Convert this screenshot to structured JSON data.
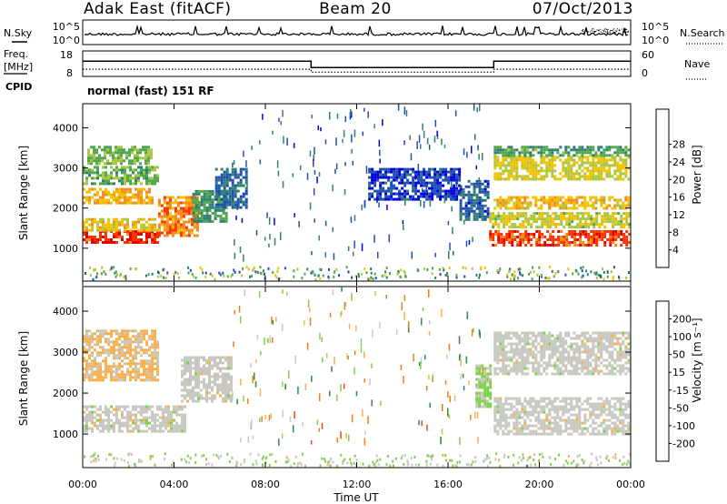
{
  "header": {
    "site": "Adak East (fitACF)",
    "beam": "Beam 20",
    "date": "07/Oct/2013"
  },
  "nsky_panel": {
    "left_label": "N.Sky",
    "left_ticks": [
      "10^5",
      "10^0"
    ],
    "right_label": "N.Search",
    "right_ticks": [
      "10^5",
      "10^0"
    ]
  },
  "freq_panel": {
    "left_label_1": "Freq.",
    "left_label_2": "[MHz]",
    "left_ticks": [
      "18",
      "8"
    ],
    "right_label": "Nave",
    "right_ticks": [
      "60",
      "0"
    ],
    "cpid_label": "CPID",
    "cpid_text": "normal (fast) 151 RF"
  },
  "colors": {
    "power_scale": [
      "#0000dd",
      "#1f4fb0",
      "#2f7f72",
      "#4ea64e",
      "#a9c640",
      "#f2c200",
      "#f58a1f",
      "#ff3300",
      "#e60000"
    ],
    "velocity_scale": [
      "#1428a8",
      "#2f6fa8",
      "#2e8c3a",
      "#7fd14a",
      "#c8c8c0",
      "#f6b050",
      "#f08010",
      "#e74a10",
      "#e00000"
    ]
  },
  "chart_data": [
    {
      "type": "heatmap",
      "title": "Power",
      "xlabel": "",
      "ylabel": "Slant Range [km]",
      "x_ticks": [
        "00:00",
        "04:00",
        "08:00",
        "12:00",
        "16:00",
        "20:00",
        "00:00"
      ],
      "y_ticks": [
        "1000",
        "2000",
        "3000",
        "4000"
      ],
      "xlim": [
        0,
        24
      ],
      "ylim": [
        180,
        4600
      ],
      "colorbar_label": "Power [dB]",
      "colorbar_ticks": [
        "4",
        "8",
        "12",
        "16",
        "20",
        "24",
        "28"
      ],
      "colorbar_range": [
        0,
        30
      ],
      "features": [
        {
          "x": [
            0.0,
            3.3
          ],
          "y": [
            1150,
            1450
          ],
          "value": 26
        },
        {
          "x": [
            0.0,
            3.3
          ],
          "y": [
            1450,
            1750
          ],
          "value": 18
        },
        {
          "x": [
            0.0,
            3.0
          ],
          "y": [
            2150,
            2500
          ],
          "value": 20
        },
        {
          "x": [
            0.0,
            3.3
          ],
          "y": [
            2600,
            3050
          ],
          "value": 12
        },
        {
          "x": [
            0.2,
            3.0
          ],
          "y": [
            3100,
            3550
          ],
          "value": 13
        },
        {
          "x": [
            3.3,
            5.0
          ],
          "y": [
            1300,
            2300
          ],
          "value": 22
        },
        {
          "x": [
            4.8,
            6.3
          ],
          "y": [
            1700,
            2450
          ],
          "value": 10
        },
        {
          "x": [
            5.8,
            7.2
          ],
          "y": [
            2000,
            3000
          ],
          "value": 7
        },
        {
          "x": [
            12.5,
            16.5
          ],
          "y": [
            2200,
            3000
          ],
          "value": 4
        },
        {
          "x": [
            16.5,
            17.8
          ],
          "y": [
            1700,
            2700
          ],
          "value": 6
        },
        {
          "x": [
            17.8,
            24.0
          ],
          "y": [
            1100,
            1450
          ],
          "value": 25
        },
        {
          "x": [
            17.8,
            24.0
          ],
          "y": [
            1500,
            1900
          ],
          "value": 16
        },
        {
          "x": [
            18.0,
            24.0
          ],
          "y": [
            2000,
            2300
          ],
          "value": 19
        },
        {
          "x": [
            18.0,
            24.0
          ],
          "y": [
            2700,
            3300
          ],
          "value": 17
        },
        {
          "x": [
            18.0,
            24.0
          ],
          "y": [
            3300,
            3550
          ],
          "value": 11
        }
      ]
    },
    {
      "type": "heatmap",
      "title": "Velocity",
      "xlabel": "Time UT",
      "ylabel": "Slant Range [km]",
      "x_ticks": [
        "00:00",
        "04:00",
        "08:00",
        "12:00",
        "16:00",
        "20:00",
        "00:00"
      ],
      "y_ticks": [
        "1000",
        "2000",
        "3000",
        "4000"
      ],
      "xlim": [
        0,
        24
      ],
      "ylim": [
        180,
        4600
      ],
      "colorbar_label": "Velocity [m s⁻¹]",
      "colorbar_ticks": [
        "200",
        "100",
        "50",
        "15",
        "-15",
        "-50",
        "-100",
        "-200"
      ],
      "colorbar_range": [
        -250,
        250
      ],
      "features": [
        {
          "x": [
            0.0,
            4.5
          ],
          "y": [
            1100,
            1700
          ],
          "value": 0
        },
        {
          "x": [
            0.0,
            3.3
          ],
          "y": [
            2300,
            3550
          ],
          "value": -40
        },
        {
          "x": [
            4.3,
            6.5
          ],
          "y": [
            1800,
            2900
          ],
          "value": 0
        },
        {
          "x": [
            17.2,
            17.9
          ],
          "y": [
            1700,
            2700
          ],
          "value": 40
        },
        {
          "x": [
            18.0,
            24.0
          ],
          "y": [
            1000,
            1900
          ],
          "value": 0
        },
        {
          "x": [
            18.0,
            24.0
          ],
          "y": [
            2500,
            3500
          ],
          "value": 0
        }
      ]
    },
    {
      "type": "line",
      "title": "N.Sky / N.Search",
      "x_range": [
        0,
        24
      ],
      "series": []
    },
    {
      "type": "line",
      "title": "Freq. / Nave",
      "x": [
        0,
        10,
        10,
        18,
        18,
        24
      ],
      "series": [
        {
          "name": "Freq.",
          "values": [
            14,
            14,
            11.5,
            11.5,
            14,
            14
          ]
        },
        {
          "name": "Nave",
          "values": [
            17,
            17,
            10,
            10,
            17,
            17
          ]
        }
      ]
    }
  ]
}
